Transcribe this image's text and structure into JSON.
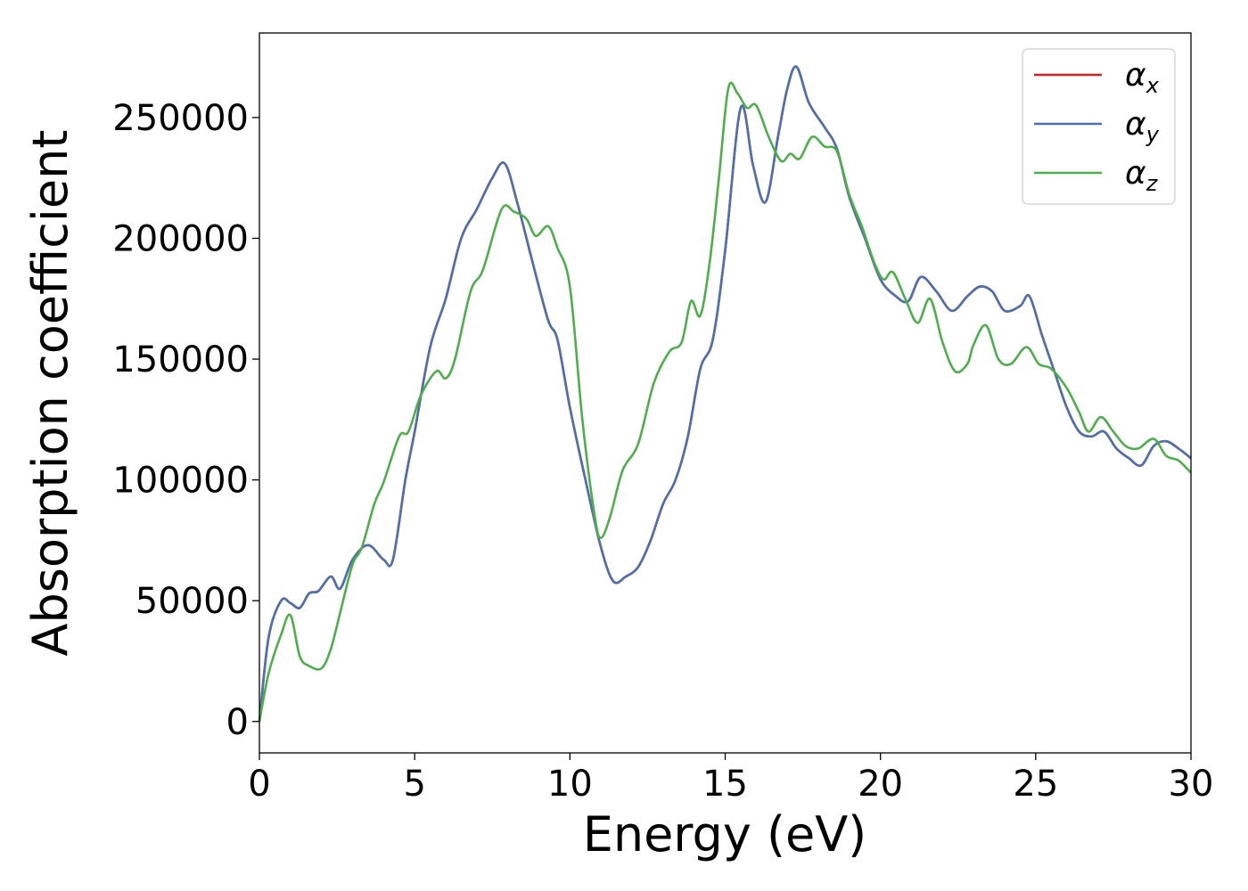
{
  "chart_data": {
    "type": "line",
    "xlabel": "Energy (eV)",
    "ylabel": "Absorption coefficient",
    "xlim": [
      0,
      30
    ],
    "ylim": [
      -13000,
      285000
    ],
    "xticks": [
      0,
      5,
      10,
      15,
      20,
      25,
      30
    ],
    "yticks": [
      0,
      50000,
      100000,
      150000,
      200000,
      250000
    ],
    "grid": false,
    "legend_position": "top-right",
    "series": [
      {
        "name": "α",
        "subscript": "x",
        "color": "#e41a1c",
        "x": [
          0,
          0.3,
          0.7,
          1.0,
          1.3,
          1.6,
          1.9,
          2.3,
          2.6,
          3.0,
          3.5,
          4.0,
          4.3,
          4.7,
          5.0,
          5.5,
          6.0,
          6.5,
          7.0,
          7.5,
          7.9,
          8.3,
          8.8,
          9.3,
          9.6,
          10.0,
          10.5,
          11.0,
          11.4,
          11.8,
          12.2,
          12.6,
          13.0,
          13.4,
          13.8,
          14.2,
          14.6,
          15.0,
          15.5,
          15.9,
          16.3,
          16.7,
          17.0,
          17.3,
          17.7,
          18.2,
          18.6,
          19.0,
          19.5,
          20.0,
          20.5,
          20.9,
          21.3,
          21.8,
          22.3,
          22.8,
          23.2,
          23.6,
          24.0,
          24.5,
          24.8,
          25.2,
          25.6,
          26.0,
          26.4,
          26.8,
          27.2,
          27.6,
          28.0,
          28.4,
          28.8,
          29.2,
          29.6,
          30.0
        ],
        "y": [
          0,
          35000,
          50000,
          49000,
          47000,
          53000,
          54000,
          60000,
          55000,
          67000,
          73000,
          67000,
          67000,
          100000,
          120000,
          155000,
          175000,
          200000,
          212000,
          225000,
          231000,
          215000,
          190000,
          166000,
          158000,
          130000,
          100000,
          72000,
          58000,
          60000,
          64000,
          75000,
          90000,
          100000,
          118000,
          146000,
          158000,
          195000,
          254000,
          230000,
          215000,
          242000,
          262000,
          271000,
          256000,
          246000,
          237000,
          217000,
          200000,
          183000,
          176000,
          174000,
          184000,
          178000,
          170000,
          176000,
          180000,
          178000,
          170000,
          172000,
          176000,
          160000,
          145000,
          130000,
          120000,
          118000,
          120000,
          113000,
          109000,
          106000,
          114000,
          116000,
          113000,
          109000
        ]
      },
      {
        "name": "α",
        "subscript": "y",
        "color": "#4a72b0",
        "x": [
          0,
          0.3,
          0.7,
          1.0,
          1.3,
          1.6,
          1.9,
          2.3,
          2.6,
          3.0,
          3.5,
          4.0,
          4.3,
          4.7,
          5.0,
          5.5,
          6.0,
          6.5,
          7.0,
          7.5,
          7.9,
          8.3,
          8.8,
          9.3,
          9.6,
          10.0,
          10.5,
          11.0,
          11.4,
          11.8,
          12.2,
          12.6,
          13.0,
          13.4,
          13.8,
          14.2,
          14.6,
          15.0,
          15.5,
          15.9,
          16.3,
          16.7,
          17.0,
          17.3,
          17.7,
          18.2,
          18.6,
          19.0,
          19.5,
          20.0,
          20.5,
          20.9,
          21.3,
          21.8,
          22.3,
          22.8,
          23.2,
          23.6,
          24.0,
          24.5,
          24.8,
          25.2,
          25.6,
          26.0,
          26.4,
          26.8,
          27.2,
          27.6,
          28.0,
          28.4,
          28.8,
          29.2,
          29.6,
          30.0
        ],
        "y": [
          0,
          35000,
          50000,
          49000,
          47000,
          53000,
          54000,
          60000,
          55000,
          67000,
          73000,
          67000,
          67000,
          100000,
          120000,
          155000,
          175000,
          200000,
          212000,
          225000,
          231000,
          215000,
          190000,
          166000,
          158000,
          130000,
          100000,
          72000,
          58000,
          60000,
          64000,
          75000,
          90000,
          100000,
          118000,
          146000,
          158000,
          195000,
          254000,
          230000,
          215000,
          242000,
          262000,
          271000,
          256000,
          246000,
          237000,
          217000,
          200000,
          183000,
          176000,
          174000,
          184000,
          178000,
          170000,
          176000,
          180000,
          178000,
          170000,
          172000,
          176000,
          160000,
          145000,
          130000,
          120000,
          118000,
          120000,
          113000,
          109000,
          106000,
          114000,
          116000,
          113000,
          109000
        ]
      },
      {
        "name": "α",
        "subscript": "z",
        "color": "#4daf4a",
        "x": [
          0,
          0.3,
          0.7,
          1.0,
          1.3,
          1.6,
          2.0,
          2.3,
          2.6,
          3.0,
          3.3,
          3.7,
          4.0,
          4.5,
          4.8,
          5.2,
          5.7,
          6.0,
          6.3,
          6.8,
          7.2,
          7.8,
          8.2,
          8.6,
          8.9,
          9.3,
          9.6,
          10.0,
          10.4,
          10.8,
          11.0,
          11.3,
          11.7,
          12.2,
          12.7,
          13.2,
          13.6,
          13.9,
          14.2,
          14.5,
          14.8,
          15.1,
          15.4,
          15.7,
          16.0,
          16.4,
          16.8,
          17.1,
          17.4,
          17.8,
          18.2,
          18.6,
          19.0,
          19.4,
          19.8,
          20.1,
          20.4,
          20.8,
          21.2,
          21.6,
          22.0,
          22.4,
          22.8,
          23.0,
          23.4,
          23.8,
          24.2,
          24.7,
          25.1,
          25.5,
          26.0,
          26.4,
          26.7,
          27.1,
          27.5,
          27.9,
          28.3,
          28.8,
          29.2,
          29.6,
          30.0
        ],
        "y": [
          0,
          20000,
          36000,
          44000,
          27000,
          23000,
          22000,
          30000,
          45000,
          65000,
          72000,
          90000,
          99000,
          118000,
          120000,
          135000,
          145000,
          142000,
          150000,
          178000,
          187000,
          212000,
          211000,
          208000,
          201000,
          205000,
          196000,
          180000,
          125000,
          85000,
          76000,
          85000,
          104000,
          115000,
          140000,
          153000,
          157000,
          174000,
          168000,
          190000,
          225000,
          262000,
          260000,
          254000,
          255000,
          242000,
          232000,
          235000,
          233000,
          242000,
          238000,
          236000,
          218000,
          205000,
          190000,
          183000,
          186000,
          175000,
          165000,
          175000,
          157000,
          145000,
          148000,
          156000,
          164000,
          150000,
          148000,
          155000,
          148000,
          146000,
          138000,
          128000,
          120000,
          126000,
          120000,
          114000,
          113000,
          117000,
          110000,
          108000,
          103000
        ]
      }
    ]
  }
}
